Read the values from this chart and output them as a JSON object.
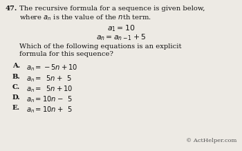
{
  "background_color": "#edeae4",
  "question_number": "47.",
  "line1": "The recursive formula for a sequence is given below,",
  "line2": "where $a_n$ is the value of the $n$th term.",
  "formula1": "$a_1 = 10$",
  "formula2": "$a_n = a_{n-1} + 5$",
  "q_line1": "Which of the following equations is an explicit",
  "q_line2": "formula for this sequence?",
  "choice_labels": [
    "A.",
    "B.",
    "C.",
    "D.",
    "E."
  ],
  "choice_formulas": [
    "$a_n = -5n + 10$",
    "$a_n =\\;\\; 5n +\\;\\; 5$",
    "$a_n =\\;\\; 5n + 10$",
    "$a_n = 10n -\\;\\; 5$",
    "$a_n = 10n +\\;\\; 5$"
  ],
  "copyright": "© ActHelper.com",
  "text_color": "#111111",
  "gray_color": "#555555",
  "fs_main": 7.2,
  "fs_formula": 7.8,
  "fs_choices": 7.2,
  "fs_copy": 6.0
}
